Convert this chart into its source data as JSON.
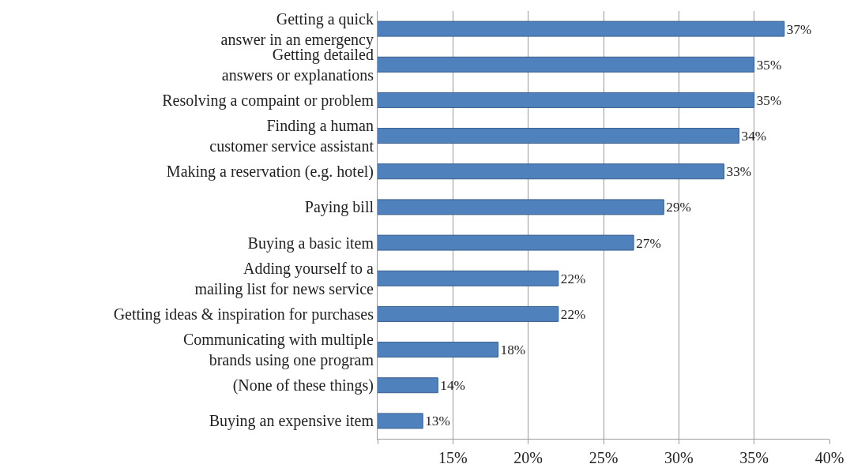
{
  "chart_data": {
    "type": "bar",
    "orientation": "horizontal",
    "categories": [
      "Getting a quick\nanswer in an emergency",
      "Getting detailed\nanswers or explanations",
      "Resolving a compaint or problem",
      "Finding a human\ncustomer service assistant",
      "Making a reservation (e.g. hotel)",
      "Paying bill",
      "Buying a basic item",
      "Adding yourself to a\nmailing list for news service",
      "Getting ideas & inspiration for purchases",
      "Communicating with multiple\nbrands using one program",
      "(None of these things)",
      "Buying an expensive item"
    ],
    "values": [
      37,
      35,
      35,
      34,
      33,
      29,
      27,
      22,
      22,
      18,
      14,
      13
    ],
    "value_labels": [
      "37%",
      "35%",
      "35%",
      "34%",
      "33%",
      "29%",
      "27%",
      "22%",
      "22%",
      "18%",
      "14%",
      "13%"
    ],
    "color": "#4f81bd",
    "xlim": [
      10,
      40
    ],
    "xticks": [
      {
        "value": 10,
        "label": null
      },
      {
        "value": 15,
        "label": "15%"
      },
      {
        "value": 20,
        "label": "20%"
      },
      {
        "value": 25,
        "label": "25%"
      },
      {
        "value": 30,
        "label": "30%"
      },
      {
        "value": 35,
        "label": "35%"
      },
      {
        "value": 40,
        "label": "40%"
      }
    ],
    "grid": "x"
  }
}
